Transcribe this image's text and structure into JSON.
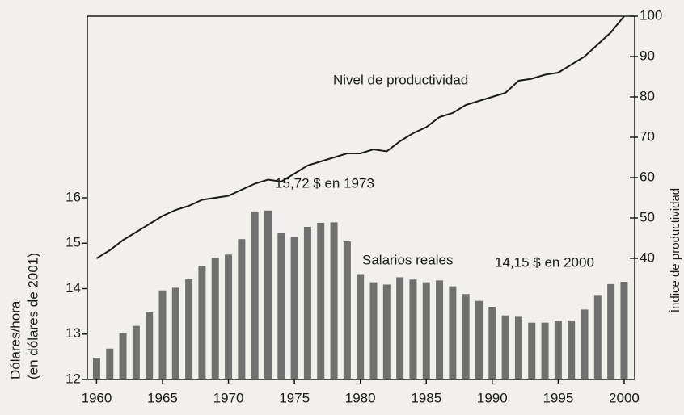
{
  "chart_data": {
    "type": "bar",
    "ylabel": [
      "Dólares/hora",
      "(en dólares de 2001)"
    ],
    "y2label": "Índice de productividad",
    "annotations": [
      "15,72 $ en 1973",
      "14,15 $ en 2000"
    ],
    "x": [
      1960,
      1961,
      1962,
      1963,
      1964,
      1965,
      1966,
      1967,
      1968,
      1969,
      1970,
      1971,
      1972,
      1973,
      1974,
      1975,
      1976,
      1977,
      1978,
      1979,
      1980,
      1981,
      1982,
      1983,
      1984,
      1985,
      1986,
      1987,
      1988,
      1989,
      1990,
      1991,
      1992,
      1993,
      1994,
      1995,
      1996,
      1997,
      1998,
      1999,
      2000
    ],
    "series": [
      {
        "name": "Salarios reales",
        "type": "bar",
        "color": "#707070",
        "values": [
          12.48,
          12.68,
          13.02,
          13.18,
          13.48,
          13.96,
          14.02,
          14.21,
          14.5,
          14.68,
          14.75,
          15.09,
          15.7,
          15.72,
          15.23,
          15.13,
          15.36,
          15.45,
          15.46,
          15.04,
          14.32,
          14.14,
          14.09,
          14.25,
          14.2,
          14.14,
          14.18,
          14.05,
          13.88,
          13.73,
          13.6,
          13.41,
          13.38,
          13.25,
          13.25,
          13.29,
          13.3,
          13.54,
          13.86,
          14.1,
          14.15
        ]
      },
      {
        "name": "Nivel de productividad",
        "type": "line",
        "axis": "y2",
        "color": "#1a1a1a",
        "values": [
          40,
          42,
          44.5,
          46.5,
          48.5,
          50.5,
          52,
          53,
          54.5,
          55,
          55.5,
          57,
          58.5,
          59.5,
          59,
          61,
          63,
          64,
          65,
          66,
          66,
          67,
          66.5,
          69,
          71,
          72.5,
          75,
          76,
          78,
          79,
          80,
          81,
          84,
          84.5,
          85.5,
          86,
          88,
          90,
          93,
          96,
          100
        ]
      }
    ],
    "xlim": [
      1959.3,
      2000.8
    ],
    "xticks": [
      1960,
      1965,
      1970,
      1975,
      1980,
      1985,
      1990,
      1995,
      2000
    ],
    "ylim": [
      12,
      20
    ],
    "yticks": [
      12,
      13,
      14,
      15,
      16
    ],
    "y2lim": [
      10,
      100
    ],
    "y2ticks": [
      40,
      50,
      60,
      70,
      80,
      90,
      100
    ]
  }
}
